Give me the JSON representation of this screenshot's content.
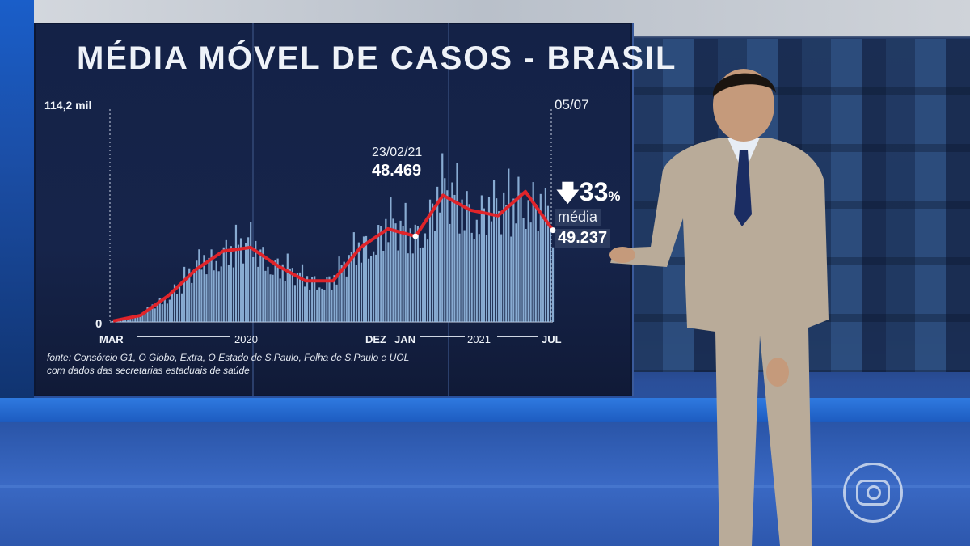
{
  "chart_title": "MÉDIA MÓVEL DE CASOS - BRASIL",
  "axis": {
    "y_max_label": "114,2 mil",
    "y_zero_label": "0",
    "x_labels": {
      "mar": "MAR",
      "year_2020": "2020",
      "dez": "DEZ",
      "jan": "JAN",
      "year_2021": "2021",
      "jul": "JUL"
    }
  },
  "annotations": {
    "end_date": "05/07",
    "peak_date": "23/02/21",
    "peak_value": "48.469",
    "drop_percent": "33",
    "drop_percent_sign": "%",
    "media_label": "média",
    "media_value": "49.237"
  },
  "source_line1": "fonte: Consórcio G1, O Globo, Extra, O Estado de S.Paulo, Folha de S.Paulo e UOL",
  "source_line2": "com dados das secretarias estaduais de saúde",
  "colors": {
    "bars": "#9cc3ea",
    "line": "#e0242a",
    "panel": "#142247"
  },
  "chart_data": {
    "type": "bar",
    "title": "MÉDIA MÓVEL DE CASOS - BRASIL",
    "ylim": [
      0,
      114200
    ],
    "x_range": [
      "2020-03",
      "2021-07-05"
    ],
    "monthly_moving_average": [
      {
        "month": "2020-03",
        "value": 500
      },
      {
        "month": "2020-04",
        "value": 3500
      },
      {
        "month": "2020-05",
        "value": 14000
      },
      {
        "month": "2020-06",
        "value": 28000
      },
      {
        "month": "2020-07",
        "value": 38000
      },
      {
        "month": "2020-08",
        "value": 40000
      },
      {
        "month": "2020-09",
        "value": 30000
      },
      {
        "month": "2020-10",
        "value": 22000
      },
      {
        "month": "2020-11",
        "value": 22000
      },
      {
        "month": "2020-12",
        "value": 40000
      },
      {
        "month": "2021-01",
        "value": 50000
      },
      {
        "month": "2021-02",
        "value": 46000
      },
      {
        "month": "2021-03",
        "value": 68000
      },
      {
        "month": "2021-04",
        "value": 60000
      },
      {
        "month": "2021-05",
        "value": 57000
      },
      {
        "month": "2021-06",
        "value": 70000
      },
      {
        "month": "2021-07",
        "value": 49237
      }
    ],
    "peak_annotation": {
      "date": "23/02/21",
      "value": 48469
    },
    "latest": {
      "date": "05/07",
      "value": 49237,
      "change_percent": -33
    }
  }
}
